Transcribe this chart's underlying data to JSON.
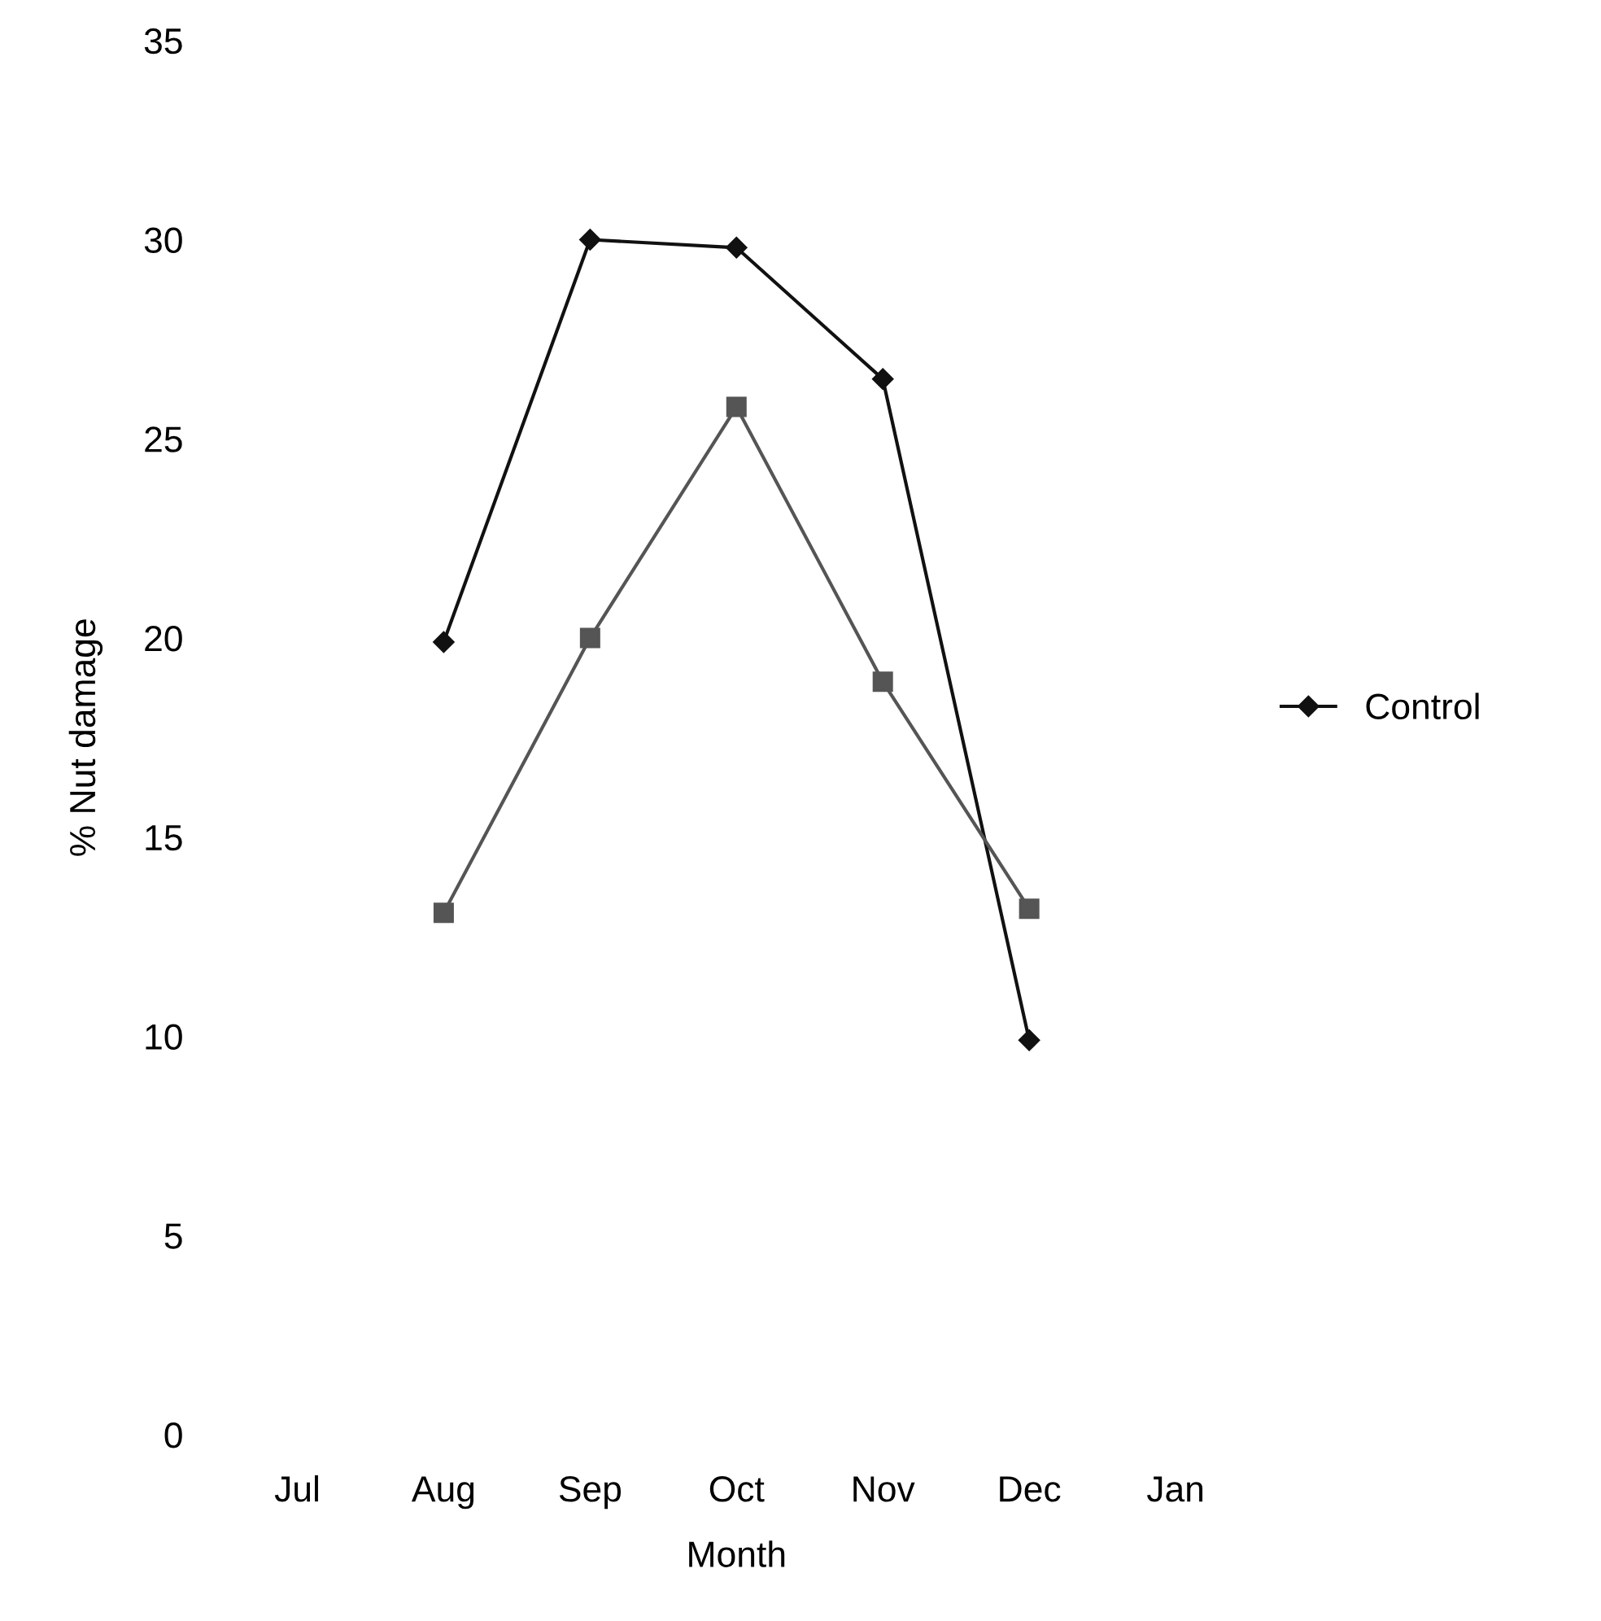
{
  "chart_data": {
    "type": "line",
    "xlabel": "Month",
    "ylabel": "% Nut damage",
    "categories": [
      "Jul",
      "Aug",
      "Sep",
      "Oct",
      "Nov",
      "Dec",
      "Jan"
    ],
    "ylim": [
      0,
      35
    ],
    "yticks": [
      0,
      5,
      10,
      15,
      20,
      25,
      30,
      35
    ],
    "grid": false,
    "legend": "right",
    "series": [
      {
        "name": "Control",
        "color": "#111111",
        "marker": "diamond",
        "values": [
          null,
          19.9,
          30,
          29.8,
          26.5,
          9.9,
          null
        ]
      },
      {
        "color": "#555555",
        "marker": "square",
        "values": [
          null,
          13.1,
          20,
          25.8,
          18.9,
          13.2,
          null
        ]
      }
    ]
  }
}
